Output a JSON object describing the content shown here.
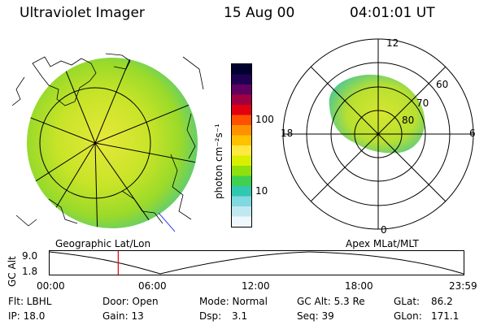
{
  "header": {
    "title": "Ultraviolet Imager",
    "date": "15 Aug 00",
    "time": "04:01:01 UT"
  },
  "colorbar": {
    "unit_label": "photon cm⁻²s⁻¹",
    "ticks": [
      "100",
      "10"
    ],
    "colors": [
      "#000030",
      "#200050",
      "#600060",
      "#a00040",
      "#e00010",
      "#ff5000",
      "#ff9000",
      "#ffc000",
      "#ffe840",
      "#d8f000",
      "#90e010",
      "#40d050",
      "#30c8b0",
      "#80d8e0",
      "#c0e8f0",
      "#f0f8ff"
    ]
  },
  "left_panel": {
    "label": "Geographic Lat/Lon"
  },
  "right_panel": {
    "label": "Apex MLat/MLT",
    "mlt_labels": {
      "top": "12",
      "left": "18",
      "right": "6",
      "bottom": "0"
    },
    "lat_labels": [
      "60",
      "70",
      "80"
    ]
  },
  "timeline": {
    "axis_label": "GC Alt",
    "y_ticks": [
      "9.0",
      "1.8"
    ],
    "x_ticks": [
      "00:00",
      "06:00",
      "12:00",
      "18:00",
      "23:59"
    ],
    "marker_time_hours": 4.017,
    "marker_color": "#e00000"
  },
  "info": {
    "flt": "Flt: LBHL",
    "ip": "IP: 18.0",
    "door": "Door: Open",
    "gain": "Gain: 13",
    "mode": "Mode: Normal",
    "dsp_label": "Dsp:",
    "dsp_value": "3.1",
    "gc_alt": "GC Alt: 5.3 Re",
    "seq": "Seq: 39",
    "glat_label": "GLat:",
    "glat_value": "86.2",
    "glon_label": "GLon:",
    "glon_value": "171.1"
  }
}
